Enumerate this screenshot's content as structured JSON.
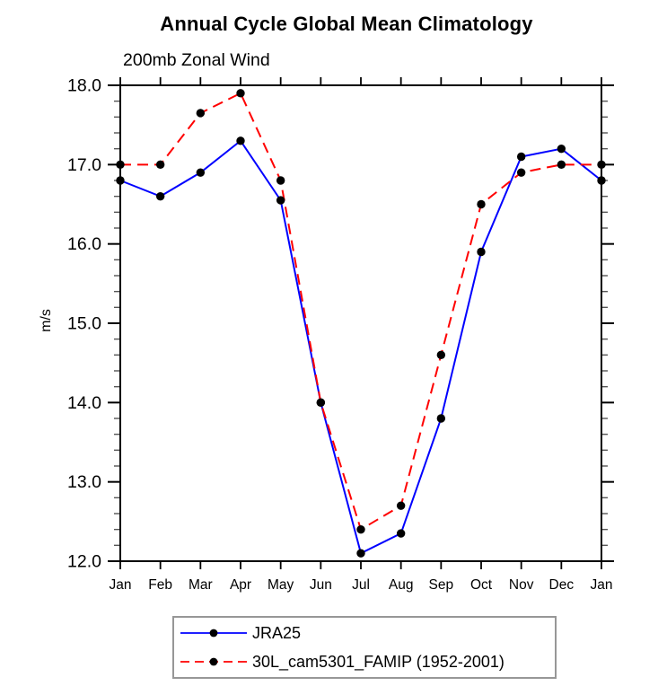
{
  "header": {
    "title": "Annual Cycle Global Mean Climatology",
    "subtitle": "200mb Zonal Wind"
  },
  "chart_data": {
    "type": "line",
    "title": "Annual Cycle Global Mean Climatology",
    "subtitle": "200mb Zonal Wind",
    "xlabel": "",
    "ylabel": "m/s",
    "categories": [
      "Jan",
      "Feb",
      "Mar",
      "Apr",
      "May",
      "Jun",
      "Jul",
      "Aug",
      "Sep",
      "Oct",
      "Nov",
      "Dec",
      "Jan"
    ],
    "series": [
      {
        "name": "JRA25",
        "color": "#0000ff",
        "style": "solid",
        "marker": "black-dot",
        "values": [
          16.8,
          16.6,
          16.9,
          17.3,
          16.55,
          14.0,
          12.1,
          12.35,
          13.8,
          15.9,
          17.1,
          17.2,
          16.8
        ]
      },
      {
        "name": "30L_cam5301_FAMIP (1952-2001)",
        "color": "#ff0000",
        "style": "dashed",
        "marker": "black-dot",
        "values": [
          17.0,
          17.0,
          17.65,
          17.9,
          16.8,
          14.0,
          12.4,
          12.7,
          14.6,
          16.5,
          16.9,
          17.0,
          17.0
        ]
      }
    ],
    "ylim": [
      12.0,
      18.0
    ],
    "ytick_step": 1.0,
    "yminor_step": 0.2,
    "ytick_labels": [
      "12.0",
      "13.0",
      "14.0",
      "15.0",
      "16.0",
      "17.0",
      "18.0"
    ],
    "axis_color": "#000000",
    "marker_color": "#000000",
    "grid": false,
    "legend_position": "bottom"
  }
}
